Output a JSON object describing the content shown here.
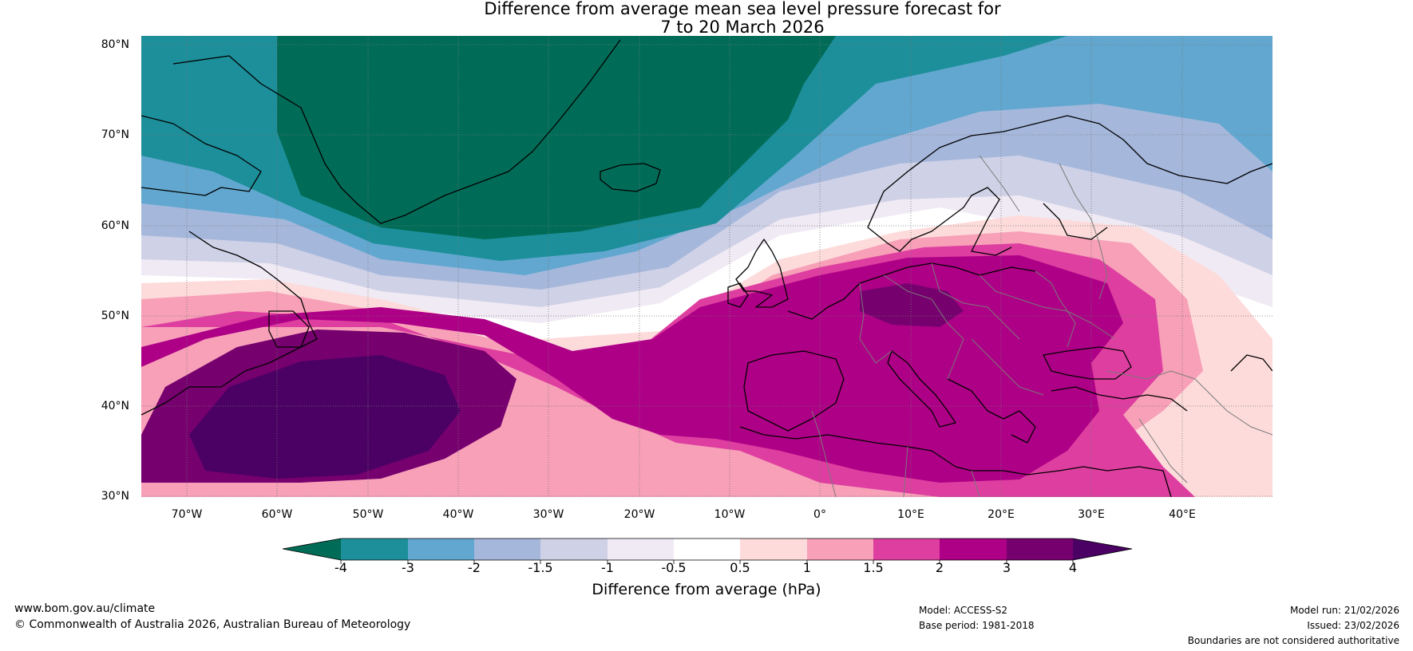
{
  "title_line1": "Difference from average mean sea level pressure forecast for",
  "title_line2": "7 to 20 March 2026",
  "lat_labels": [
    "80°N",
    "70°N",
    "60°N",
    "50°N",
    "40°N",
    "30°N"
  ],
  "lon_labels": [
    "70°W",
    "60°W",
    "50°W",
    "40°W",
    "30°W",
    "20°W",
    "10°W",
    "0°",
    "10°E",
    "20°E",
    "30°E",
    "40°E"
  ],
  "colorbar": {
    "ticks": [
      "-4",
      "-3",
      "-2",
      "-1.5",
      "-1",
      "-0.5",
      "0.5",
      "1",
      "1.5",
      "2",
      "3",
      "4"
    ],
    "colors": [
      "#006c57",
      "#1c8f9a",
      "#62a7cf",
      "#a5b8dc",
      "#cfd1e6",
      "#f0eaf4",
      "#ffffff",
      "#fddbdb",
      "#f7a0b8",
      "#de3ea0",
      "#ae0086",
      "#77006f",
      "#4b0064"
    ],
    "label": "Difference from average (hPa)"
  },
  "footer": {
    "website": "www.bom.gov.au/climate",
    "copyright": "© Commonwealth of Australia 2026, Australian Bureau of Meteorology",
    "model": "Model: ACCESS-S2",
    "base_period": "Base period: 1981-2018",
    "model_run": "Model run: 21/02/2026",
    "issued": "Issued: 23/02/2026",
    "boundaries_note": "Boundaries are not considered authoritative"
  }
}
